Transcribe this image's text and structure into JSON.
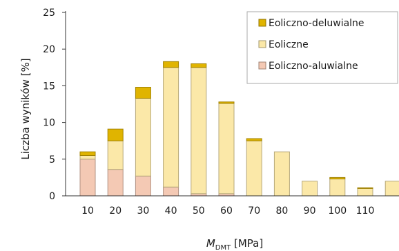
{
  "chart_data": {
    "type": "bar",
    "stacked": true,
    "categories": [
      "10",
      "20",
      "30",
      "40",
      "50",
      "60",
      "70",
      "80",
      "90",
      "100",
      "110",
      ""
    ],
    "series": [
      {
        "name": "Eoliczno-aluwialne",
        "color": "#f4c9b4",
        "values": [
          5.0,
          3.6,
          2.7,
          1.2,
          0.3,
          0.3,
          0.0,
          0.0,
          0.0,
          0.0,
          0.0,
          0.0
        ]
      },
      {
        "name": "Eoliczne",
        "color": "#fbe8a8",
        "values": [
          0.5,
          3.9,
          10.6,
          16.3,
          17.2,
          12.3,
          7.5,
          6.0,
          2.0,
          2.3,
          1.0,
          2.0
        ]
      },
      {
        "name": "Eoliczno-deluwialne",
        "color": "#e0b400",
        "values": [
          0.5,
          1.6,
          1.5,
          0.8,
          0.5,
          0.2,
          0.3,
          0.0,
          0.0,
          0.2,
          0.1,
          0.0
        ]
      }
    ],
    "legend_order": [
      "Eoliczno-deluwialne",
      "Eoliczne",
      "Eoliczno-aluwialne"
    ],
    "ylim": [
      0,
      25
    ],
    "yticks": [
      0,
      5,
      10,
      15,
      20,
      25
    ],
    "ylabel": "Liczba wyników [%]",
    "xlabel_main": "M",
    "xlabel_sub": "DMT",
    "xlabel_unit": " [MPa]",
    "grid": false,
    "legend_position": "top-right"
  }
}
